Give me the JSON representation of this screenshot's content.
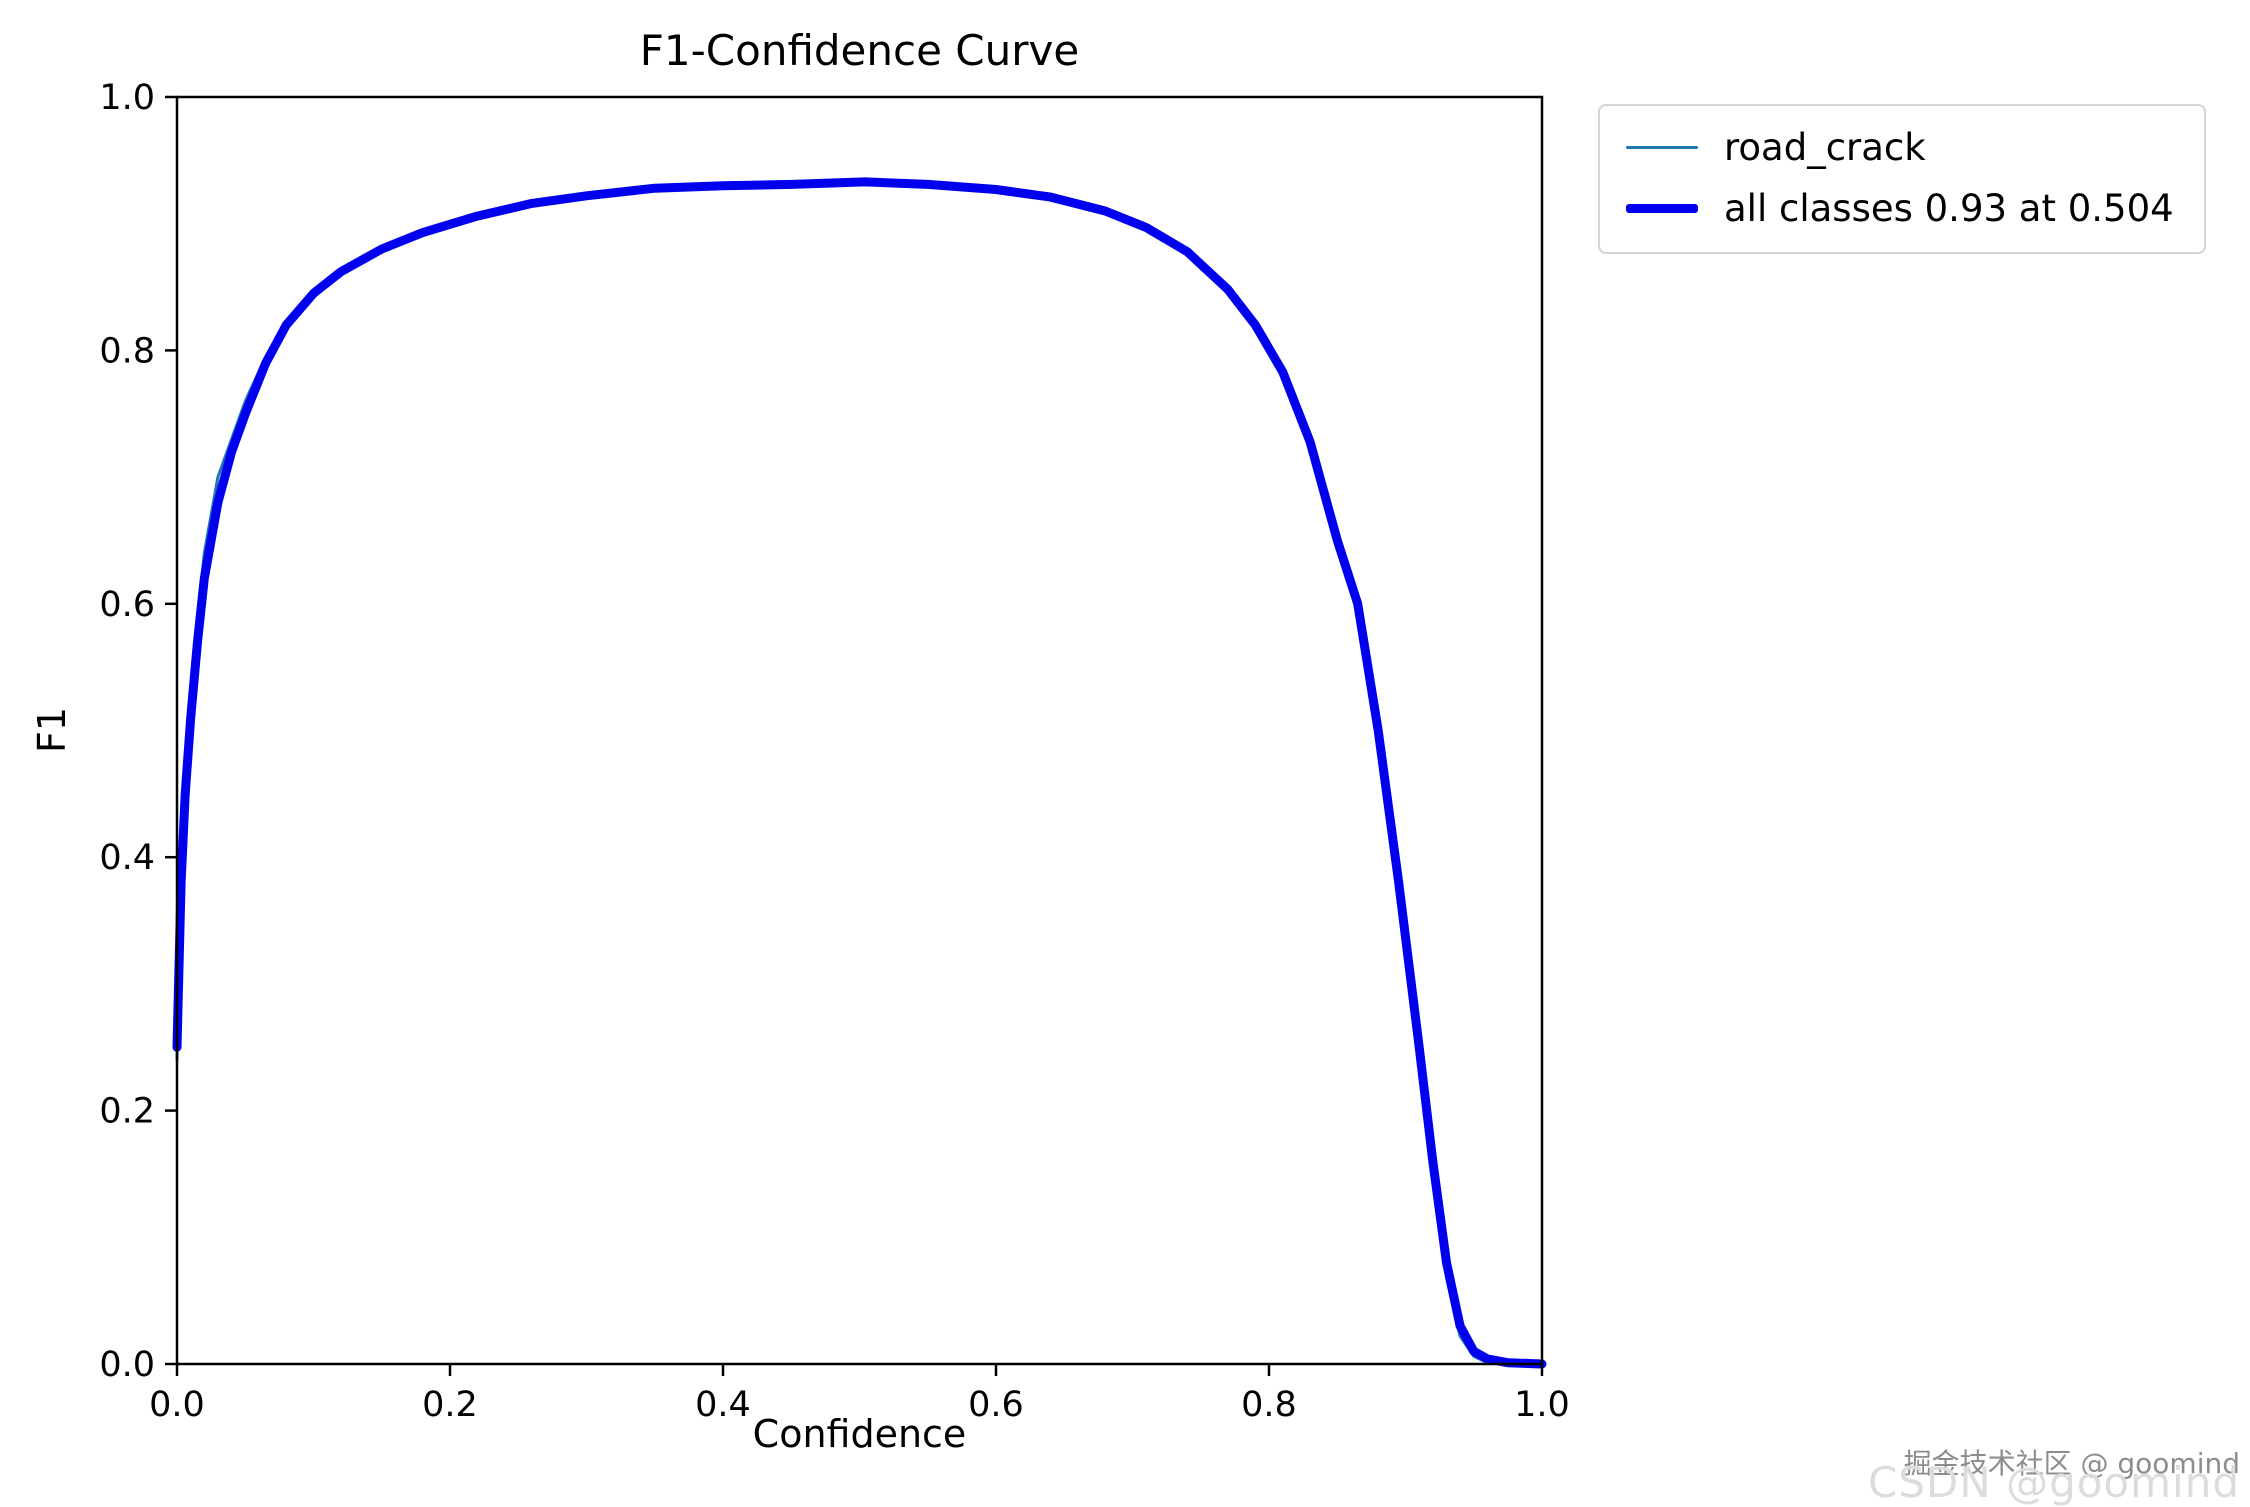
{
  "figure": {
    "title": "F1-Confidence Curve",
    "xlabel": "Confidence",
    "ylabel": "F1"
  },
  "legend": {
    "position": "outside-top-right",
    "entries": [
      {
        "label": "road_crack",
        "color": "#1f77b4",
        "line_width": 3
      },
      {
        "label": "all classes 0.93 at 0.504",
        "color": "#0000ee",
        "line_width": 9
      }
    ]
  },
  "watermark": {
    "line1": "掘金技术社区 @ goomind",
    "line2": "CSDN @goomind"
  },
  "chart_data": {
    "type": "line",
    "title": "F1-Confidence Curve",
    "xlabel": "Confidence",
    "ylabel": "F1",
    "xlim": [
      0.0,
      1.0
    ],
    "ylim": [
      0.0,
      1.0
    ],
    "grid": false,
    "legend_position": "outside-top-right",
    "x_ticks": [
      0.0,
      0.2,
      0.4,
      0.6,
      0.8,
      1.0
    ],
    "x_tick_labels": [
      "0.0",
      "0.2",
      "0.4",
      "0.6",
      "0.8",
      "1.0"
    ],
    "y_ticks": [
      0.0,
      0.2,
      0.4,
      0.6,
      0.8,
      1.0
    ],
    "y_tick_labels": [
      "0.0",
      "0.2",
      "0.4",
      "0.6",
      "0.8",
      "1.0"
    ],
    "annotations": {
      "best_f1": 0.93,
      "best_confidence": 0.504
    },
    "x": [
      0.0,
      0.003,
      0.006,
      0.01,
      0.015,
      0.02,
      0.03,
      0.04,
      0.05,
      0.065,
      0.08,
      0.1,
      0.12,
      0.15,
      0.18,
      0.22,
      0.26,
      0.3,
      0.35,
      0.4,
      0.45,
      0.504,
      0.55,
      0.6,
      0.64,
      0.68,
      0.71,
      0.74,
      0.77,
      0.79,
      0.81,
      0.83,
      0.85,
      0.865,
      0.88,
      0.895,
      0.91,
      0.92,
      0.93,
      0.94,
      0.95,
      0.96,
      0.975,
      1.0
    ],
    "series": [
      {
        "name": "road_crack",
        "color": "#1f77b4",
        "width": 3,
        "values": [
          0.24,
          0.4,
          0.47,
          0.53,
          0.59,
          0.64,
          0.7,
          0.73,
          0.76,
          0.795,
          0.823,
          0.847,
          0.863,
          0.881,
          0.894,
          0.906,
          0.916,
          0.922,
          0.928,
          0.93,
          0.931,
          0.933,
          0.931,
          0.927,
          0.921,
          0.91,
          0.897,
          0.878,
          0.848,
          0.82,
          0.783,
          0.728,
          0.648,
          0.595,
          0.492,
          0.368,
          0.238,
          0.148,
          0.068,
          0.022,
          0.006,
          0.001,
          0.0,
          0.0
        ]
      },
      {
        "name": "all classes 0.93 at 0.504",
        "color": "#0000ee",
        "width": 9,
        "values": [
          0.25,
          0.38,
          0.45,
          0.51,
          0.57,
          0.62,
          0.68,
          0.72,
          0.75,
          0.79,
          0.82,
          0.845,
          0.862,
          0.88,
          0.893,
          0.906,
          0.916,
          0.922,
          0.928,
          0.93,
          0.931,
          0.933,
          0.931,
          0.927,
          0.921,
          0.91,
          0.897,
          0.878,
          0.848,
          0.82,
          0.783,
          0.728,
          0.65,
          0.6,
          0.5,
          0.38,
          0.25,
          0.16,
          0.08,
          0.03,
          0.01,
          0.004,
          0.001,
          0.0
        ]
      }
    ]
  }
}
